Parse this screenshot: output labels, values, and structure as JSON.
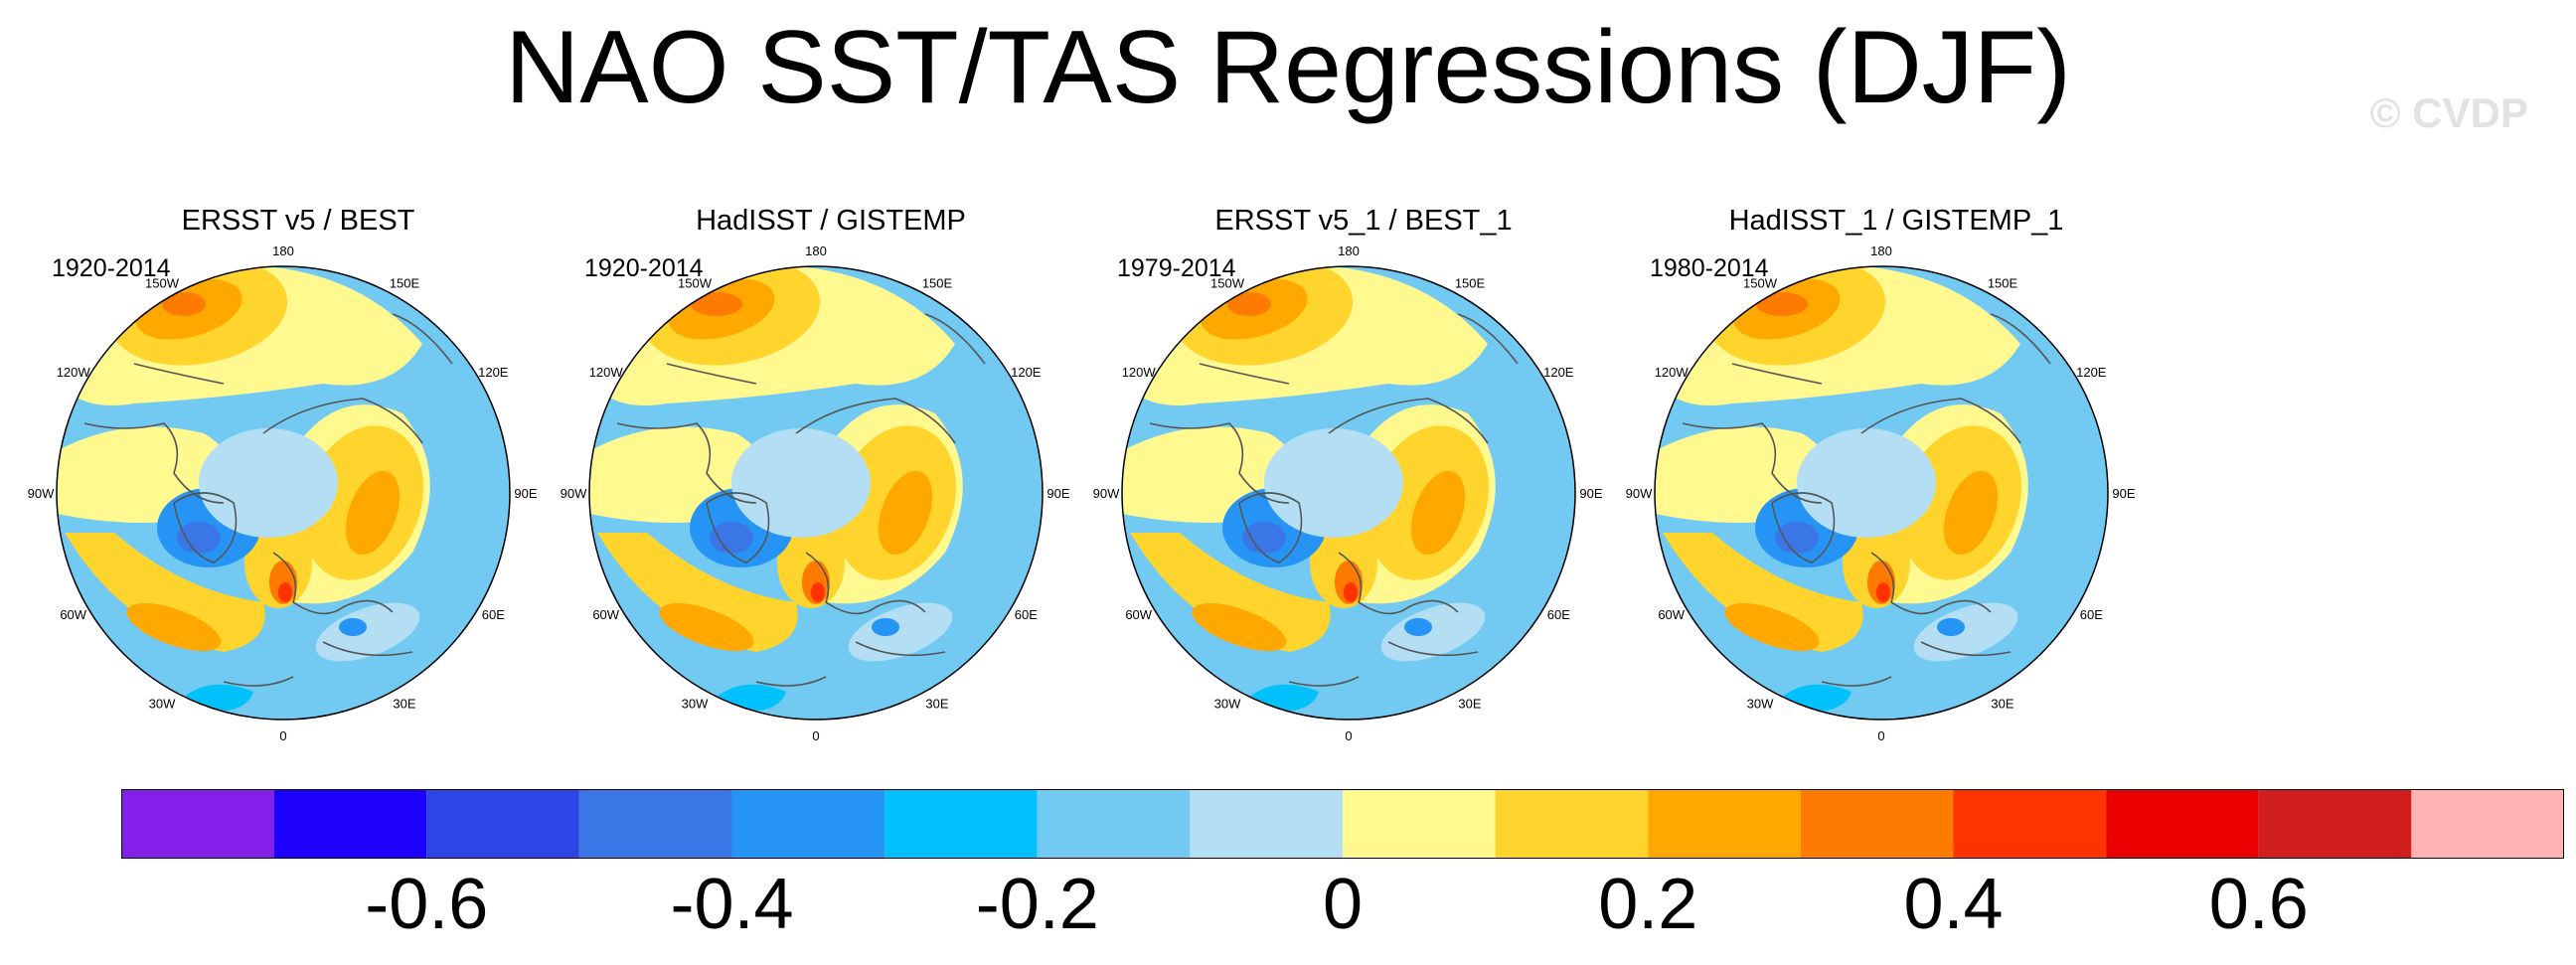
{
  "title": "NAO SST/TAS Regressions (DJF)",
  "watermark": "© CVDP",
  "panels": [
    {
      "title": "ERSST v5 / BEST",
      "years": "1920-2014"
    },
    {
      "title": "HadISST / GISTEMP",
      "years": "1920-2014"
    },
    {
      "title": "ERSST v5_1 / BEST_1",
      "years": "1979-2014"
    },
    {
      "title": "HadISST_1 / GISTEMP_1",
      "years": "1980-2014"
    }
  ],
  "longitude_labels": [
    "180",
    "150E",
    "120E",
    "90E",
    "60E",
    "30E",
    "0",
    "30W",
    "60W",
    "90W",
    "120W",
    "150W"
  ],
  "colorbar": {
    "colors": [
      "#8420ea",
      "#1d00fb",
      "#2e45e6",
      "#3a76e6",
      "#2594f4",
      "#00c1fb",
      "#72caf2",
      "#b3def4",
      "#fff98f",
      "#ffd52d",
      "#ffa800",
      "#ff7a00",
      "#ff3300",
      "#ea0000",
      "#d01e1e",
      "#ffb2b2"
    ],
    "tick_labels": [
      "-0.6",
      "-0.4",
      "-0.2",
      "0",
      "0.2",
      "0.4",
      "0.6"
    ]
  }
}
